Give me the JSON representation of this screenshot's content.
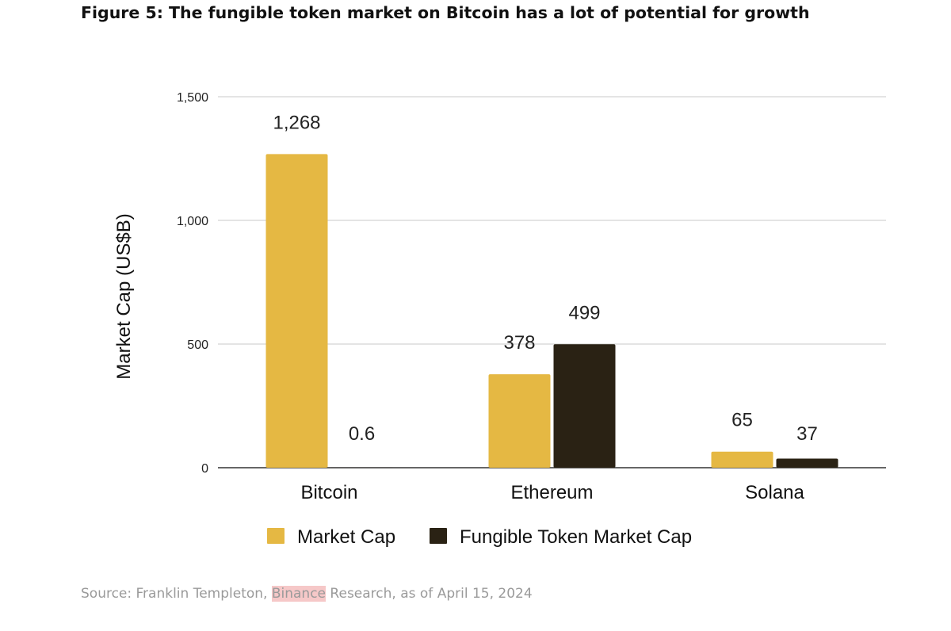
{
  "title": "Figure 5: The fungible token market on Bitcoin has a lot of potential for growth",
  "source": {
    "prefix": "Source: Franklin Templeton, ",
    "highlight": "Binance",
    "suffix": " Research, as of April 15, 2024"
  },
  "colors": {
    "market_cap": "#e5b843",
    "fungible": "#2a2214",
    "grid": "#c9c9c9",
    "axis": "#333333",
    "highlight": "#f6c8c8"
  },
  "chart_data": {
    "type": "bar",
    "title": "Figure 5: The fungible token market on Bitcoin has a lot of potential for growth",
    "xlabel": "",
    "ylabel": "Market Cap (US$B)",
    "ylim": [
      0,
      1500
    ],
    "yticks": [
      0,
      500,
      1000,
      1500
    ],
    "ytick_labels": [
      "0",
      "500",
      "1,000",
      "1,500"
    ],
    "categories": [
      "Bitcoin",
      "Ethereum",
      "Solana"
    ],
    "series": [
      {
        "name": "Market Cap",
        "values": [
          1268,
          378,
          65
        ],
        "labels": [
          "1,268",
          "378",
          "65"
        ]
      },
      {
        "name": "Fungible Token Market Cap",
        "values": [
          0.6,
          499,
          37
        ],
        "labels": [
          "0.6",
          "499",
          "37"
        ]
      }
    ],
    "grid": true,
    "legend": "bottom"
  }
}
